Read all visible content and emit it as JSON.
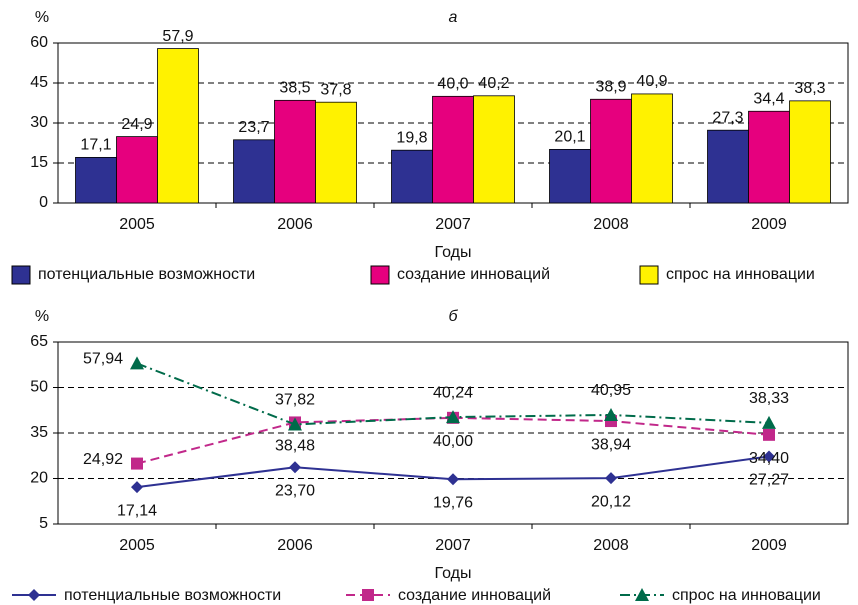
{
  "chart_data": [
    {
      "type": "bar",
      "title": "а",
      "ylabel": "%",
      "xlabel": "Годы",
      "categories": [
        "2005",
        "2006",
        "2007",
        "2008",
        "2009"
      ],
      "ylim": [
        0,
        60
      ],
      "yticks": [
        0,
        15,
        30,
        45,
        60
      ],
      "grid": true,
      "series": [
        {
          "name": "потенциальные возможности",
          "color": "#2e3192",
          "values": [
            17.1,
            23.7,
            19.8,
            20.1,
            27.3
          ],
          "value_labels": [
            "17,1",
            "23,7",
            "19,8",
            "20,1",
            "27,3"
          ]
        },
        {
          "name": "создание инноваций",
          "color": "#e6007e",
          "values": [
            24.9,
            38.5,
            40.0,
            38.9,
            34.4
          ],
          "value_labels": [
            "24,9",
            "38,5",
            "40,0",
            "38,9",
            "34,4"
          ]
        },
        {
          "name": "спрос на инновации",
          "color": "#fff200",
          "values": [
            57.9,
            37.8,
            40.2,
            40.9,
            38.3
          ],
          "value_labels": [
            "57,9",
            "37,8",
            "40,2",
            "40,9",
            "38,3"
          ]
        }
      ]
    },
    {
      "type": "line",
      "title": "б",
      "ylabel": "%",
      "xlabel": "Годы",
      "categories": [
        "2005",
        "2006",
        "2007",
        "2008",
        "2009"
      ],
      "ylim": [
        5,
        65
      ],
      "yticks": [
        5,
        20,
        35,
        50,
        65
      ],
      "grid": true,
      "series": [
        {
          "name": "потенциальные возможности",
          "color": "#2e3192",
          "marker": "diamond",
          "dash": "solid",
          "values": [
            17.14,
            23.7,
            19.76,
            20.12,
            27.27
          ],
          "value_labels": [
            "17,14",
            "23,70",
            "19,76",
            "20,12",
            "27,27"
          ]
        },
        {
          "name": "создание инноваций",
          "color": "#c1288a",
          "marker": "square",
          "dash": "dashed",
          "values": [
            24.92,
            38.48,
            40.0,
            38.94,
            34.4
          ],
          "value_labels": [
            "24,92",
            "38,48",
            "40,00",
            "38,94",
            "34,40"
          ]
        },
        {
          "name": "спрос на инновации",
          "color": "#006b4a",
          "marker": "triangle",
          "dash": "dashdot",
          "values": [
            57.94,
            37.82,
            40.24,
            40.95,
            38.33
          ],
          "value_labels": [
            "57,94",
            "37,82",
            "40,24",
            "40,95",
            "38,33"
          ]
        }
      ]
    }
  ]
}
